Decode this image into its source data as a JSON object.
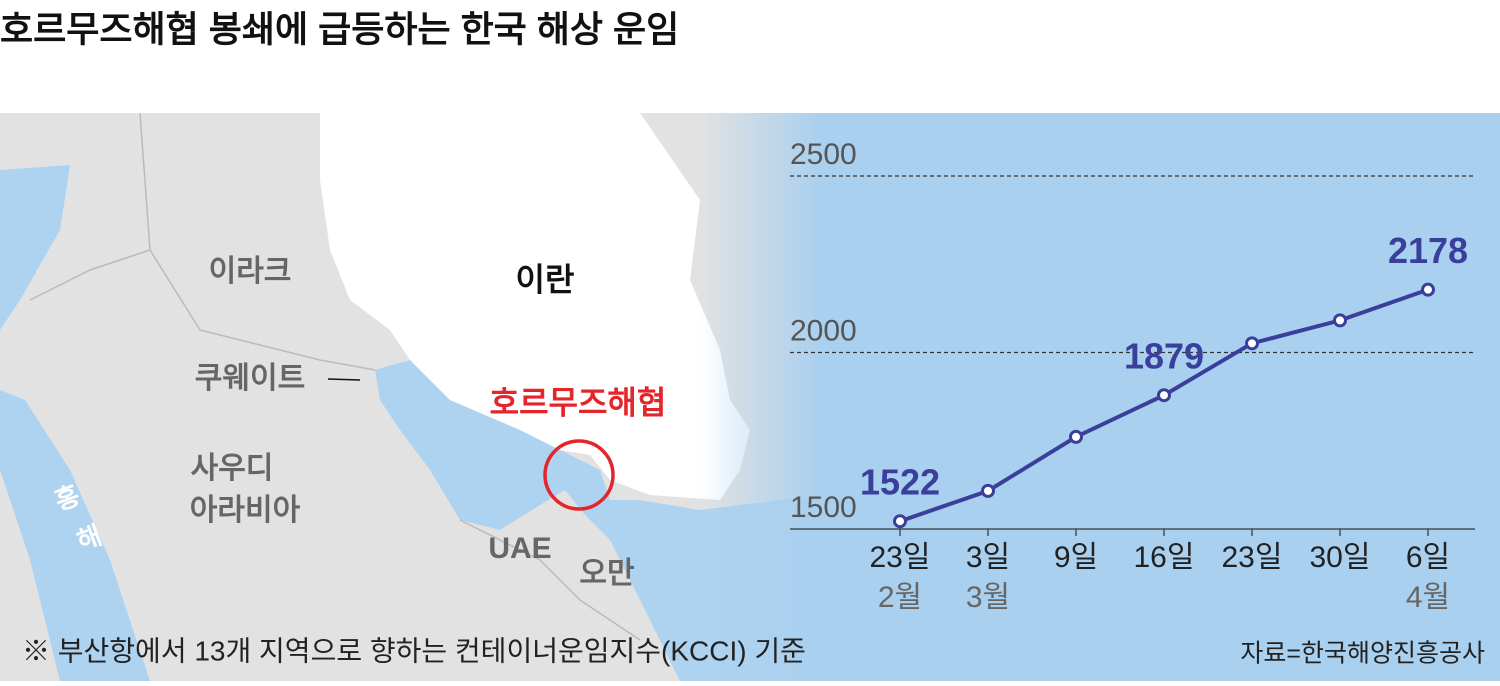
{
  "header": {
    "title": "호르무즈해협 봉쇄에 급등하는 한국 해상 운임"
  },
  "map": {
    "iraq": "이라크",
    "iran": "이란",
    "kuwait": "쿠웨이트",
    "saudi": [
      "사우디",
      "아라비아"
    ],
    "red_sea": [
      "홍",
      "해"
    ],
    "uae": "UAE",
    "oman": "오만",
    "hormuz": "호르무즈해협"
  },
  "chart_data": {
    "type": "line",
    "categories": [
      "23일",
      "3일",
      "9일",
      "16일",
      "23일",
      "30일",
      "6일"
    ],
    "month_labels": [
      "2월",
      "3월",
      null,
      null,
      null,
      null,
      "4월"
    ],
    "values": [
      1522,
      1608,
      1761,
      1879,
      2026,
      2091,
      2178
    ],
    "show_labels": [
      true,
      false,
      false,
      true,
      false,
      false,
      true
    ],
    "color": "#3a3f9c",
    "ylim": [
      1500,
      2500
    ],
    "yticks": [
      1500,
      2000,
      2500
    ],
    "grid": true
  },
  "footer": {
    "note": "※ 부산항에서 13개 지역으로 향하는 컨테이너운임지수(KCCI) 기준",
    "source": "자료=한국해양진흥공사"
  }
}
